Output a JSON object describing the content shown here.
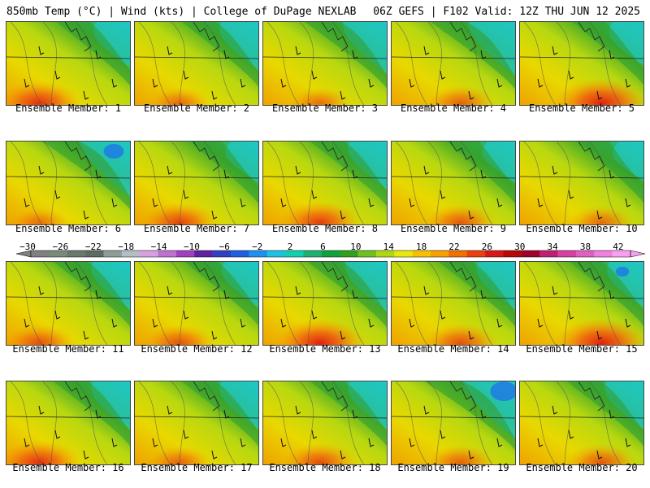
{
  "header": {
    "left": "850mb Temp (°C) | Wind (kts) | College of DuPage NEXLAB",
    "right": "06Z GEFS | F102 Valid: 12Z THU JUN 12 2025"
  },
  "caption_prefix": "Ensemble Member: ",
  "members": [
    {
      "label": "Ensemble Member: 1",
      "hot": 0.8,
      "cool": 0.55,
      "blue": 0.0
    },
    {
      "label": "Ensemble Member: 2",
      "hot": 0.45,
      "cool": 0.6,
      "blue": 0.0
    },
    {
      "label": "Ensemble Member: 3",
      "hot": 0.45,
      "cool": 0.7,
      "blue": 0.0
    },
    {
      "label": "Ensemble Member: 4",
      "hot": 0.55,
      "cool": 0.75,
      "blue": 0.0
    },
    {
      "label": "Ensemble Member: 5",
      "hot": 0.95,
      "cool": 0.5,
      "blue": 0.0
    },
    {
      "label": "Ensemble Member: 6",
      "hot": 0.4,
      "cool": 0.8,
      "blue": 0.6
    },
    {
      "label": "Ensemble Member: 7",
      "hot": 0.7,
      "cool": 0.45,
      "blue": 0.0
    },
    {
      "label": "Ensemble Member: 8",
      "hot": 0.75,
      "cool": 0.6,
      "blue": 0.0
    },
    {
      "label": "Ensemble Member: 9",
      "hot": 0.6,
      "cool": 0.45,
      "blue": 0.0
    },
    {
      "label": "Ensemble Member: 10",
      "hot": 0.5,
      "cool": 0.4,
      "blue": 0.0
    },
    {
      "label": "Ensemble Member: 11",
      "hot": 0.6,
      "cool": 0.6,
      "blue": 0.0
    },
    {
      "label": "Ensemble Member: 12",
      "hot": 0.6,
      "cool": 0.55,
      "blue": 0.0
    },
    {
      "label": "Ensemble Member: 13",
      "hot": 0.9,
      "cool": 0.65,
      "blue": 0.0
    },
    {
      "label": "Ensemble Member: 14",
      "hot": 0.65,
      "cool": 0.6,
      "blue": 0.0
    },
    {
      "label": "Ensemble Member: 15",
      "hot": 0.95,
      "cool": 0.55,
      "blue": 0.3
    },
    {
      "label": "Ensemble Member: 16",
      "hot": 0.8,
      "cool": 0.6,
      "blue": 0.0
    },
    {
      "label": "Ensemble Member: 17",
      "hot": 0.5,
      "cool": 0.6,
      "blue": 0.0
    },
    {
      "label": "Ensemble Member: 18",
      "hot": 0.65,
      "cool": 0.6,
      "blue": 0.0
    },
    {
      "label": "Ensemble Member: 19",
      "hot": 0.55,
      "cool": 0.85,
      "blue": 0.9
    },
    {
      "label": "Ensemble Member: 20",
      "hot": 0.6,
      "cool": 0.6,
      "blue": 0.0
    }
  ],
  "colorbar": {
    "tick_labels": [
      "−30",
      "−26",
      "−22",
      "−18",
      "−14",
      "−10",
      "−6",
      "−2",
      "2",
      "6",
      "10",
      "14",
      "18",
      "22",
      "26",
      "30",
      "34",
      "38",
      "42"
    ],
    "colors": [
      "#808080",
      "#7a8a7a",
      "#6c786c",
      "#5e6a62",
      "#909c98",
      "#b4bcc4",
      "#d8a0e0",
      "#c070d0",
      "#a040c0",
      "#6020a0",
      "#3040c0",
      "#2060e0",
      "#2090f0",
      "#20c0e0",
      "#10d0b0",
      "#20b070",
      "#10a040",
      "#30a020",
      "#70c020",
      "#b0d810",
      "#e8e810",
      "#f8c000",
      "#f8a000",
      "#f07000",
      "#e84010",
      "#d81818",
      "#b80808",
      "#a00030",
      "#c02070",
      "#d840a0",
      "#e060c0",
      "#f080e0",
      "#f8a0f0"
    ]
  }
}
